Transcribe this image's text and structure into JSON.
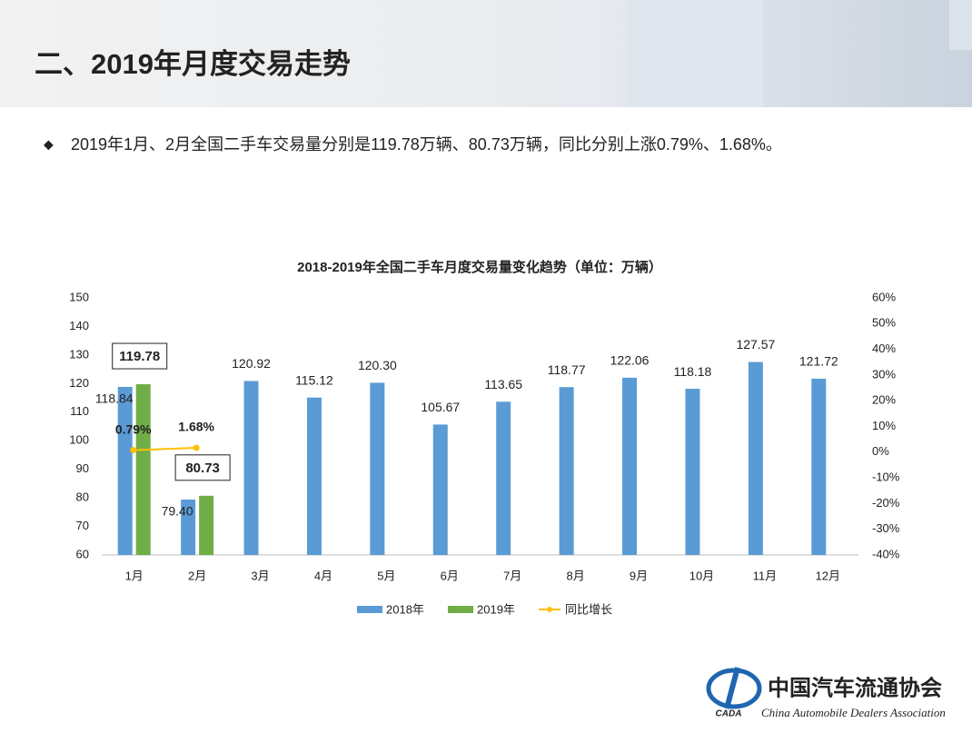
{
  "header": {
    "title": "二、2019年月度交易走势"
  },
  "bullet": "2019年1月、2月全国二手车交易量分别是119.78万辆、80.73万辆，同比分别上涨0.79%、1.68%。",
  "chart_data": {
    "type": "bar",
    "title": "2018-2019年全国二手车月度交易量变化趋势（单位：万辆）",
    "categories": [
      "1月",
      "2月",
      "3月",
      "4月",
      "5月",
      "6月",
      "7月",
      "8月",
      "9月",
      "10月",
      "11月",
      "12月"
    ],
    "series": [
      {
        "name": "2018年",
        "color": "#5b9bd5",
        "values": [
          118.84,
          79.4,
          120.92,
          115.12,
          120.3,
          105.67,
          113.65,
          118.77,
          122.06,
          118.18,
          127.57,
          121.72
        ],
        "value_labels": [
          "118.84",
          "79.40",
          "120.92",
          "115.12",
          "120.30",
          "105.67",
          "113.65",
          "118.77",
          "122.06",
          "118.18",
          "127.57",
          "121.72"
        ]
      },
      {
        "name": "2019年",
        "color": "#70ad47",
        "values": [
          119.78,
          80.73,
          null,
          null,
          null,
          null,
          null,
          null,
          null,
          null,
          null,
          null
        ],
        "value_labels": [
          "119.78",
          "80.73",
          null,
          null,
          null,
          null,
          null,
          null,
          null,
          null,
          null,
          null
        ]
      },
      {
        "name": "同比增长",
        "type": "line",
        "axis": "y2",
        "color": "#ffc000",
        "values": [
          0.79,
          1.68,
          null,
          null,
          null,
          null,
          null,
          null,
          null,
          null,
          null,
          null
        ],
        "value_labels": [
          "0.79%",
          "1.68%",
          null,
          null,
          null,
          null,
          null,
          null,
          null,
          null,
          null,
          null
        ]
      }
    ],
    "ylim": [
      60,
      150
    ],
    "yticks": [
      60,
      70,
      80,
      90,
      100,
      110,
      120,
      130,
      140,
      150
    ],
    "y2lim": [
      -40,
      60
    ],
    "y2ticks": [
      {
        "value": -40,
        "label": "-40%"
      },
      {
        "value": -30,
        "label": "-30%"
      },
      {
        "value": -20,
        "label": "-20%"
      },
      {
        "value": -10,
        "label": "-10%"
      },
      {
        "value": 0,
        "label": "0%"
      },
      {
        "value": 10,
        "label": "10%"
      },
      {
        "value": 20,
        "label": "20%"
      },
      {
        "value": 30,
        "label": "30%"
      },
      {
        "value": 40,
        "label": "40%"
      },
      {
        "value": 50,
        "label": "50%"
      },
      {
        "value": 60,
        "label": "60%"
      }
    ],
    "legend": "bottom"
  },
  "footer": {
    "org": "中国汽车流通协会",
    "org_en": "China Automobile Dealers Association",
    "abbr": "CADA"
  }
}
